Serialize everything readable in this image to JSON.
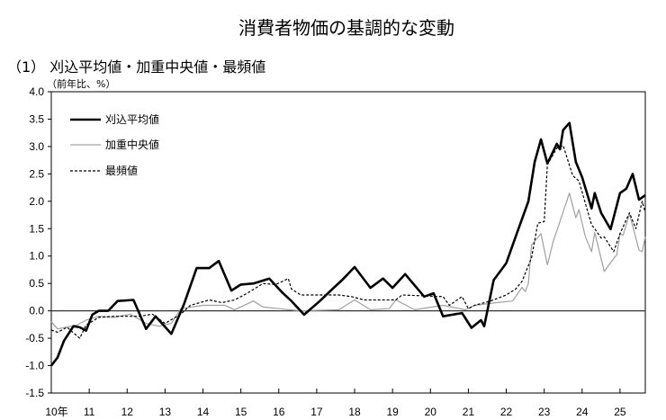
{
  "chart_data": {
    "type": "line",
    "title": "消費者物価の基調的な変動",
    "subtitle": "（1） 刈込平均値・加重中央値・最頻値",
    "ylabel": "（前年比、%）",
    "xlabel": "",
    "ylim": [
      -1.5,
      4.0
    ],
    "yticks": [
      "4.0",
      "3.5",
      "3.0",
      "2.5",
      "2.0",
      "1.5",
      "1.0",
      "0.5",
      "0.0",
      "-0.5",
      "-1.0",
      "-1.5"
    ],
    "xlim": [
      "2010-01",
      "2025-09"
    ],
    "xticks": [
      "10年",
      "11",
      "12",
      "13",
      "14",
      "15",
      "16",
      "17",
      "18",
      "19",
      "20",
      "21",
      "22",
      "23",
      "24",
      "25"
    ],
    "grid": false,
    "zero_line": true,
    "legend_position": "top-left",
    "series": [
      {
        "name": "刈込平均値",
        "color": "#000000",
        "style": "solid-thick",
        "points": [
          [
            "2010-01",
            -1.0
          ],
          [
            "2010-03",
            -0.85
          ],
          [
            "2010-05",
            -0.55
          ],
          [
            "2010-08",
            -0.28
          ],
          [
            "2010-10",
            -0.3
          ],
          [
            "2010-12",
            -0.36
          ],
          [
            "2011-02",
            -0.07
          ],
          [
            "2011-04",
            0.0
          ],
          [
            "2011-07",
            0.0
          ],
          [
            "2011-10",
            0.18
          ],
          [
            "2012-03",
            0.2
          ],
          [
            "2012-07",
            -0.33
          ],
          [
            "2012-10",
            -0.1
          ],
          [
            "2013-03",
            -0.42
          ],
          [
            "2013-07",
            0.12
          ],
          [
            "2013-11",
            0.78
          ],
          [
            "2014-03",
            0.78
          ],
          [
            "2014-06",
            0.91
          ],
          [
            "2014-10",
            0.37
          ],
          [
            "2015-01",
            0.48
          ],
          [
            "2015-05",
            0.5
          ],
          [
            "2015-10",
            0.59
          ],
          [
            "2016-02",
            0.34
          ],
          [
            "2016-05",
            0.18
          ],
          [
            "2016-09",
            -0.07
          ],
          [
            "2017-02",
            0.18
          ],
          [
            "2017-06",
            0.4
          ],
          [
            "2017-09",
            0.56
          ],
          [
            "2018-01",
            0.8
          ],
          [
            "2018-06",
            0.42
          ],
          [
            "2018-10",
            0.59
          ],
          [
            "2019-01",
            0.42
          ],
          [
            "2019-05",
            0.67
          ],
          [
            "2019-11",
            0.26
          ],
          [
            "2020-02",
            0.32
          ],
          [
            "2020-05",
            -0.1
          ],
          [
            "2020-11",
            -0.04
          ],
          [
            "2021-02",
            -0.31
          ],
          [
            "2021-05",
            -0.17
          ],
          [
            "2021-06",
            -0.28
          ],
          [
            "2021-09",
            0.56
          ],
          [
            "2022-01",
            0.87
          ],
          [
            "2022-04",
            1.36
          ],
          [
            "2022-08",
            2.0
          ],
          [
            "2022-10",
            2.72
          ],
          [
            "2022-12",
            3.13
          ],
          [
            "2023-02",
            2.69
          ],
          [
            "2023-05",
            3.05
          ],
          [
            "2023-06",
            2.95
          ],
          [
            "2023-07",
            3.3
          ],
          [
            "2023-09",
            3.43
          ],
          [
            "2023-11",
            2.72
          ],
          [
            "2024-01",
            2.44
          ],
          [
            "2024-04",
            1.87
          ],
          [
            "2024-05",
            2.15
          ],
          [
            "2024-07",
            1.79
          ],
          [
            "2024-10",
            1.49
          ],
          [
            "2025-01",
            2.15
          ],
          [
            "2025-03",
            2.23
          ],
          [
            "2025-05",
            2.5
          ],
          [
            "2025-07",
            2.03
          ],
          [
            "2025-09",
            2.11
          ]
        ]
      },
      {
        "name": "加重中央値",
        "color": "#a0a0a0",
        "style": "solid-thin",
        "points": [
          [
            "2010-01",
            -0.2
          ],
          [
            "2010-03",
            -0.33
          ],
          [
            "2010-09",
            -0.26
          ],
          [
            "2010-12",
            -0.17
          ],
          [
            "2011-04",
            -0.1
          ],
          [
            "2011-09",
            -0.12
          ],
          [
            "2012-02",
            -0.06
          ],
          [
            "2012-07",
            -0.23
          ],
          [
            "2012-11",
            -0.28
          ],
          [
            "2013-03",
            -0.23
          ],
          [
            "2013-06",
            0.04
          ],
          [
            "2014-01",
            0.1
          ],
          [
            "2014-08",
            0.1
          ],
          [
            "2014-11",
            0.02
          ],
          [
            "2015-05",
            0.18
          ],
          [
            "2015-08",
            0.07
          ],
          [
            "2016-01",
            0.04
          ],
          [
            "2016-08",
            0.0
          ],
          [
            "2017-08",
            0.02
          ],
          [
            "2018-01",
            0.2
          ],
          [
            "2018-06",
            0.02
          ],
          [
            "2018-12",
            0.04
          ],
          [
            "2019-02",
            0.2
          ],
          [
            "2019-08",
            0.02
          ],
          [
            "2020-05",
            0.1
          ],
          [
            "2020-12",
            0.02
          ],
          [
            "2021-03",
            0.1
          ],
          [
            "2021-10",
            0.15
          ],
          [
            "2022-03",
            0.18
          ],
          [
            "2022-06",
            0.43
          ],
          [
            "2022-07",
            0.35
          ],
          [
            "2022-08",
            0.5
          ],
          [
            "2022-09",
            1.2
          ],
          [
            "2022-12",
            1.41
          ],
          [
            "2023-02",
            0.84
          ],
          [
            "2023-04",
            1.3
          ],
          [
            "2023-05",
            1.46
          ],
          [
            "2023-09",
            2.15
          ],
          [
            "2023-11",
            1.7
          ],
          [
            "2023-12",
            1.85
          ],
          [
            "2024-02",
            1.36
          ],
          [
            "2024-04",
            1.08
          ],
          [
            "2024-05",
            1.43
          ],
          [
            "2024-08",
            0.72
          ],
          [
            "2024-09",
            0.8
          ],
          [
            "2024-12",
            1.03
          ],
          [
            "2025-01",
            1.41
          ],
          [
            "2025-02",
            1.38
          ],
          [
            "2025-04",
            1.77
          ],
          [
            "2025-07",
            1.11
          ],
          [
            "2025-08",
            1.08
          ],
          [
            "2025-09",
            1.35
          ]
        ]
      },
      {
        "name": "最頻値",
        "color": "#000000",
        "style": "dashed",
        "points": [
          [
            "2010-01",
            -0.35
          ],
          [
            "2010-03",
            -0.39
          ],
          [
            "2010-06",
            -0.3
          ],
          [
            "2010-10",
            -0.5
          ],
          [
            "2010-12",
            -0.26
          ],
          [
            "2011-04",
            -0.12
          ],
          [
            "2011-09",
            -0.1
          ],
          [
            "2012-05",
            -0.1
          ],
          [
            "2012-09",
            -0.06
          ],
          [
            "2013-01",
            -0.23
          ],
          [
            "2013-06",
            -0.06
          ],
          [
            "2013-09",
            0.1
          ],
          [
            "2014-03",
            0.2
          ],
          [
            "2014-07",
            0.15
          ],
          [
            "2014-11",
            0.2
          ],
          [
            "2015-03",
            0.32
          ],
          [
            "2015-08",
            0.5
          ],
          [
            "2015-12",
            0.48
          ],
          [
            "2016-04",
            0.59
          ],
          [
            "2016-05",
            0.4
          ],
          [
            "2016-08",
            0.29
          ],
          [
            "2017-08",
            0.29
          ],
          [
            "2017-12",
            0.26
          ],
          [
            "2018-04",
            0.2
          ],
          [
            "2019-02",
            0.2
          ],
          [
            "2019-04",
            0.29
          ],
          [
            "2020-05",
            0.26
          ],
          [
            "2020-07",
            0.1
          ],
          [
            "2020-11",
            0.26
          ],
          [
            "2021-01",
            0.04
          ],
          [
            "2021-03",
            0.1
          ],
          [
            "2021-08",
            0.18
          ],
          [
            "2022-01",
            0.29
          ],
          [
            "2022-04",
            0.4
          ],
          [
            "2022-06",
            0.54
          ],
          [
            "2022-09",
            0.97
          ],
          [
            "2022-11",
            1.6
          ],
          [
            "2023-01",
            1.63
          ],
          [
            "2023-02",
            2.67
          ],
          [
            "2023-05",
            2.97
          ],
          [
            "2023-07",
            3.02
          ],
          [
            "2023-10",
            2.47
          ],
          [
            "2023-12",
            2.37
          ],
          [
            "2024-04",
            1.57
          ],
          [
            "2024-05",
            1.5
          ],
          [
            "2024-07",
            1.33
          ],
          [
            "2024-08",
            1.35
          ],
          [
            "2024-11",
            1.08
          ],
          [
            "2025-01",
            1.41
          ],
          [
            "2025-04",
            1.79
          ],
          [
            "2025-06",
            1.5
          ],
          [
            "2025-08",
            2.0
          ],
          [
            "2025-09",
            1.8
          ]
        ]
      }
    ]
  }
}
